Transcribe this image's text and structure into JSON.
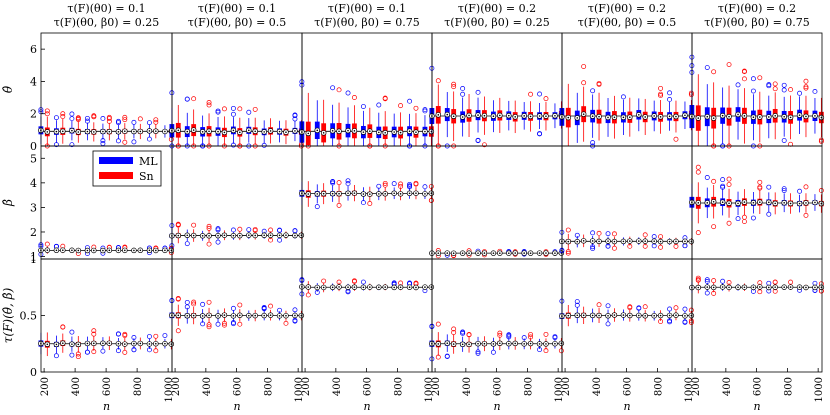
{
  "chart_data": {
    "type": "boxplot",
    "layout": "3 rows x 6 columns of boxplot panels",
    "n_values": [
      200,
      300,
      400,
      500,
      600,
      700,
      800,
      900,
      1000
    ],
    "n_tick_labels": [
      "200",
      "400",
      "600",
      "800",
      "1000"
    ],
    "xlabel": "n",
    "column_titles": [
      {
        "line1": "τ(F)(θ0) = 0.1",
        "line2": "τ(F)(θ0, β0) = 0.25"
      },
      {
        "line1": "τ(F)(θ0) = 0.1",
        "line2": "τ(F)(θ0, β0) = 0.5"
      },
      {
        "line1": "τ(F)(θ0) = 0.1",
        "line2": "τ(F)(θ0, β0) = 0.75"
      },
      {
        "line1": "τ(F)(θ0) = 0.2",
        "line2": "τ(F)(θ0, β0) = 0.25"
      },
      {
        "line1": "τ(F)(θ0) = 0.2",
        "line2": "τ(F)(θ0, β0) = 0.5"
      },
      {
        "line1": "τ(F)(θ0) = 0.2",
        "line2": "τ(F)(θ0, β0) = 0.75"
      }
    ],
    "rows": [
      {
        "ylabel": "θ̂",
        "ylim": [
          0,
          7
        ],
        "ticks": [
          "0",
          "2",
          "4",
          "6"
        ],
        "true_values": [
          0.91,
          0.91,
          0.91,
          1.86,
          1.86,
          1.86
        ],
        "spread": [
          0.45,
          0.75,
          1.2,
          0.9,
          1.0,
          1.3
        ]
      },
      {
        "ylabel": "β̂",
        "ylim": [
          0.9,
          5.5
        ],
        "ticks": [
          "1",
          "2",
          "3",
          "4",
          "5"
        ],
        "true_values": [
          1.25,
          1.86,
          3.56,
          1.14,
          1.62,
          3.18
        ],
        "spread": [
          0.07,
          0.15,
          0.25,
          0.04,
          0.15,
          0.4
        ]
      },
      {
        "ylabel": "τ(F)(θ̂, β̂)",
        "ylim": [
          0,
          1
        ],
        "ticks": [
          "0",
          "0.5",
          "1"
        ],
        "true_values": [
          0.25,
          0.5,
          0.75,
          0.25,
          0.5,
          0.75
        ],
        "spread": [
          0.05,
          0.045,
          0.025,
          0.05,
          0.045,
          0.025
        ]
      }
    ],
    "series": [
      {
        "name": "ML",
        "color": "#0000ff"
      },
      {
        "name": "Sn",
        "color": "#ff0000"
      }
    ],
    "legend": {
      "position": "top-left of row 2, column 1",
      "labels": [
        "ML",
        "Sn"
      ]
    }
  }
}
